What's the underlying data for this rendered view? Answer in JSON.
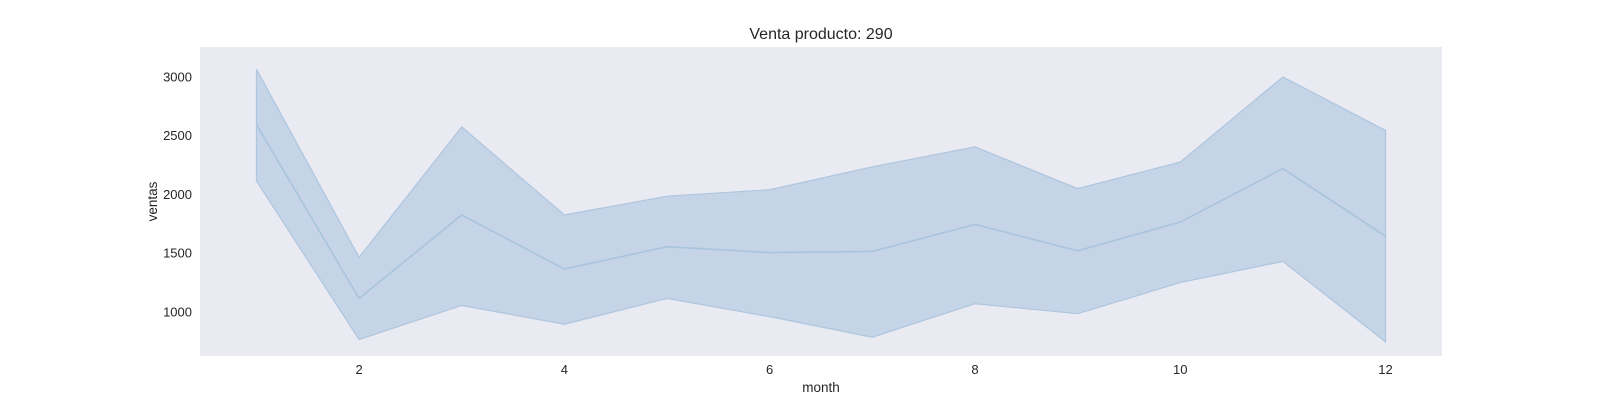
{
  "chart_data": {
    "type": "line",
    "title": "Venta producto: 290",
    "xlabel": "month",
    "ylabel": "ventas",
    "x": [
      1,
      2,
      3,
      4,
      5,
      6,
      7,
      8,
      9,
      10,
      11,
      12
    ],
    "series": [
      {
        "values": [
          2590,
          1110,
          1820,
          1360,
          1550,
          1500,
          1510,
          1740,
          1515,
          1760,
          2215,
          1640
        ],
        "ci_upper": [
          3060,
          1460,
          2570,
          1820,
          1980,
          2035,
          2230,
          2400,
          2045,
          2270,
          2995,
          2540
        ],
        "ci_lower": [
          2110,
          760,
          1050,
          890,
          1110,
          955,
          780,
          1065,
          980,
          1245,
          1425,
          740
        ]
      }
    ],
    "xlim": [
      0.45,
      12.55
    ],
    "ylim": [
      620,
      3250
    ],
    "xticks": [
      2,
      4,
      6,
      8,
      10,
      12
    ],
    "yticks": [
      1000,
      1500,
      2000,
      2500,
      3000
    ],
    "grid": false,
    "legend": "none",
    "colors": {
      "plot_background": "#eaeaf2",
      "line": "#a9c4de",
      "band": "#aec6df"
    }
  }
}
